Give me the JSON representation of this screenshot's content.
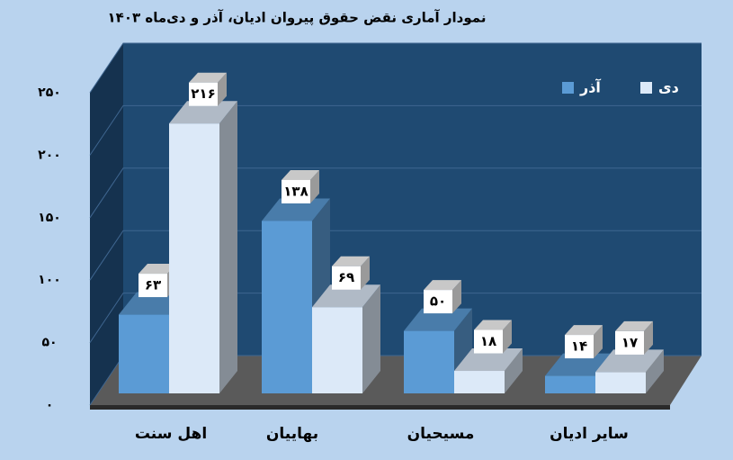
{
  "chart_data": {
    "type": "bar3d",
    "title": "نمودار آماری نقض حقوق پیروان ادیان، آذر و دی‌ماه ۱۴۰۳",
    "categories": [
      "اهل سنت",
      "بهاییان",
      "مسیحیان",
      "سایر ادیان"
    ],
    "series": [
      {
        "name": "آذر",
        "color": "#5b9bd5",
        "values": [
          63,
          138,
          50,
          14
        ],
        "value_labels": [
          "۶۳",
          "۱۳۸",
          "۵۰",
          "۱۴"
        ]
      },
      {
        "name": "دی",
        "color": "#dce9f8",
        "values": [
          216,
          69,
          18,
          17
        ],
        "value_labels": [
          "۲۱۶",
          "۶۹",
          "۱۸",
          "۱۷"
        ]
      }
    ],
    "ylim": [
      0,
      250
    ],
    "yticks": [
      {
        "value": 0,
        "label": "۰"
      },
      {
        "value": 50,
        "label": "۵۰"
      },
      {
        "value": 100,
        "label": "۱۰۰"
      },
      {
        "value": 150,
        "label": "۱۵۰"
      },
      {
        "value": 200,
        "label": "۲۰۰"
      },
      {
        "value": 250,
        "label": "۲۵۰"
      }
    ],
    "grid": true
  }
}
